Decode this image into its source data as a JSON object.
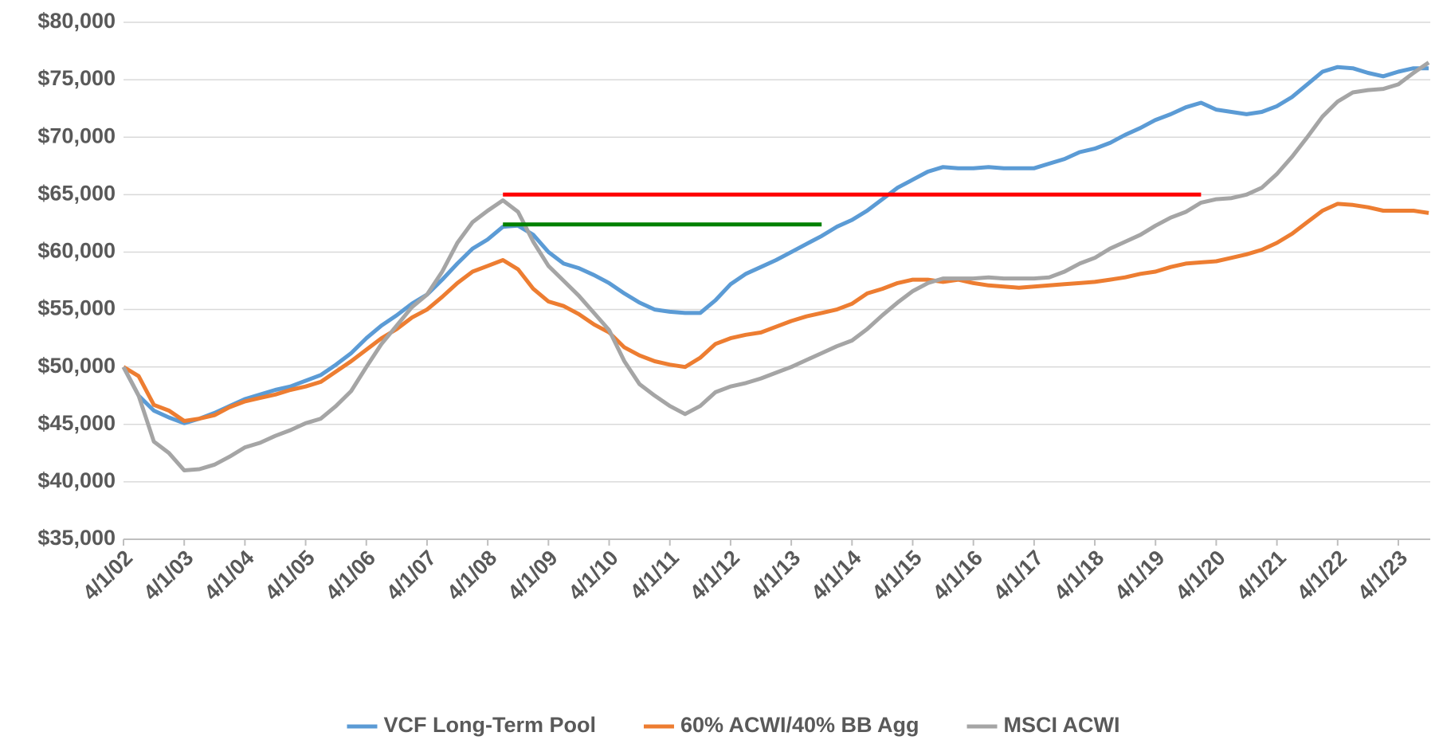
{
  "chart_data": {
    "type": "line",
    "categories": [
      "4/1/02",
      null,
      null,
      null,
      "4/1/03",
      null,
      null,
      null,
      "4/1/04",
      null,
      null,
      null,
      "4/1/05",
      null,
      null,
      null,
      "4/1/06",
      null,
      null,
      null,
      "4/1/07",
      null,
      null,
      null,
      "4/1/08",
      null,
      null,
      null,
      "4/1/09",
      null,
      null,
      null,
      "4/1/10",
      null,
      null,
      null,
      "4/1/11",
      null,
      null,
      null,
      "4/1/12",
      null,
      null,
      null,
      "4/1/13",
      null,
      null,
      null,
      "4/1/14",
      null,
      null,
      null,
      "4/1/15",
      null,
      null,
      null,
      "4/1/16",
      null,
      null,
      null,
      "4/1/17",
      null,
      null,
      null,
      "4/1/18",
      null,
      null,
      null,
      "4/1/19",
      null,
      null,
      null,
      "4/1/20",
      null,
      null,
      null,
      "4/1/21",
      null,
      null,
      null,
      "4/1/22",
      null,
      null,
      null,
      "4/1/23",
      null,
      null
    ],
    "series": [
      {
        "name": "VCF Long-Term Pool",
        "color": "#5b9bd5",
        "values": [
          50000,
          47500,
          46200,
          45600,
          45100,
          45500,
          46000,
          46600,
          47200,
          47600,
          48000,
          48300,
          48800,
          49300,
          50200,
          51200,
          52500,
          53600,
          54500,
          55500,
          56300,
          57600,
          59000,
          60300,
          61100,
          62200,
          62300,
          61500,
          60000,
          59000,
          58600,
          58000,
          57300,
          56400,
          55600,
          55000,
          54800,
          54700,
          54700,
          55800,
          57200,
          58100,
          58700,
          59300,
          60000,
          60700,
          61400,
          62200,
          62800,
          63600,
          64600,
          65600,
          66300,
          67000,
          67400,
          67300,
          67300,
          67400,
          67300,
          67300,
          67300,
          67700,
          68100,
          68700,
          69000,
          69500,
          70200,
          70800,
          71500,
          72000,
          72600,
          73000,
          72400,
          72200,
          72000,
          72200,
          72700,
          73500,
          74600,
          75700,
          76100,
          76000,
          75600,
          75300,
          75700,
          76000,
          76000
        ]
      },
      {
        "name": "60% ACWI/40% BB Agg",
        "color": "#ed7d31",
        "values": [
          50000,
          49200,
          46700,
          46200,
          45300,
          45500,
          45800,
          46500,
          47000,
          47300,
          47600,
          48000,
          48300,
          48700,
          49600,
          50500,
          51500,
          52500,
          53300,
          54300,
          55000,
          56100,
          57300,
          58300,
          58800,
          59300,
          58500,
          56800,
          55700,
          55300,
          54600,
          53700,
          53000,
          51700,
          51000,
          50500,
          50200,
          50000,
          50800,
          52000,
          52500,
          52800,
          53000,
          53500,
          54000,
          54400,
          54700,
          55000,
          55500,
          56400,
          56800,
          57300,
          57600,
          57600,
          57400,
          57600,
          57300,
          57100,
          57000,
          56900,
          57000,
          57100,
          57200,
          57300,
          57400,
          57600,
          57800,
          58100,
          58300,
          58700,
          59000,
          59100,
          59200,
          59500,
          59800,
          60200,
          60800,
          61600,
          62600,
          63600,
          64200,
          64100,
          63900,
          63600,
          63600,
          63600,
          63400
        ]
      },
      {
        "name": "MSCI ACWI",
        "color": "#a5a5a5",
        "values": [
          50000,
          47500,
          43500,
          42500,
          41000,
          41100,
          41500,
          42200,
          43000,
          43400,
          44000,
          44500,
          45100,
          45500,
          46600,
          47900,
          50000,
          52000,
          53600,
          55200,
          56300,
          58300,
          60800,
          62600,
          63600,
          64500,
          63500,
          60900,
          58800,
          57500,
          56200,
          54700,
          53200,
          50500,
          48500,
          47500,
          46600,
          45900,
          46600,
          47800,
          48300,
          48600,
          49000,
          49500,
          50000,
          50600,
          51200,
          51800,
          52300,
          53300,
          54500,
          55600,
          56600,
          57300,
          57700,
          57700,
          57700,
          57800,
          57700,
          57700,
          57700,
          57800,
          58300,
          59000,
          59500,
          60300,
          60900,
          61500,
          62300,
          63000,
          63500,
          64300,
          64600,
          64700,
          65000,
          65600,
          66800,
          68300,
          70000,
          71800,
          73100,
          73900,
          74100,
          74200,
          74600,
          75600,
          76500
        ]
      },
      {
        "color": "#ff0000",
        "values": [
          null,
          null,
          null,
          null,
          null,
          null,
          null,
          null,
          null,
          null,
          null,
          null,
          null,
          null,
          null,
          null,
          null,
          null,
          null,
          null,
          null,
          null,
          null,
          null,
          null,
          65000,
          65000,
          65000,
          65000,
          65000,
          65000,
          65000,
          65000,
          65000,
          65000,
          65000,
          65000,
          65000,
          65000,
          65000,
          65000,
          65000,
          65000,
          65000,
          65000,
          65000,
          65000,
          65000,
          65000,
          65000,
          65000,
          65000,
          65000,
          65000,
          65000,
          65000,
          65000,
          65000,
          65000,
          65000,
          65000,
          65000,
          65000,
          65000,
          65000,
          65000,
          65000,
          65000,
          65000,
          65000,
          65000,
          65000,
          null,
          null,
          null,
          null,
          null,
          null,
          null,
          null,
          null,
          null,
          null,
          null,
          null,
          null,
          null
        ]
      },
      {
        "color": "#008000",
        "values": [
          null,
          null,
          null,
          null,
          null,
          null,
          null,
          null,
          null,
          null,
          null,
          null,
          null,
          null,
          null,
          null,
          null,
          null,
          null,
          null,
          null,
          null,
          null,
          null,
          null,
          62400,
          62400,
          62400,
          62400,
          62400,
          62400,
          62400,
          62400,
          62400,
          62400,
          62400,
          62400,
          62400,
          62400,
          62400,
          62400,
          62400,
          62400,
          62400,
          62400,
          62400,
          62400,
          null,
          null,
          null,
          null,
          null,
          null,
          null,
          null,
          null,
          null,
          null,
          null,
          null,
          null,
          null,
          null,
          null,
          null,
          null,
          null,
          null,
          null,
          null,
          null,
          null,
          null,
          null,
          null,
          null,
          null,
          null,
          null,
          null,
          null,
          null,
          null,
          null,
          null,
          null,
          null
        ]
      }
    ],
    "ylim": [
      35000,
      80000
    ],
    "yticks": [
      {
        "value": 35000,
        "label": "$35,000"
      },
      {
        "value": 40000,
        "label": "$40,000"
      },
      {
        "value": 45000,
        "label": "$45,000"
      },
      {
        "value": 50000,
        "label": "$50,000"
      },
      {
        "value": 55000,
        "label": "$55,000"
      },
      {
        "value": 60000,
        "label": "$60,000"
      },
      {
        "value": 65000,
        "label": "$65,000"
      },
      {
        "value": 70000,
        "label": "$70,000"
      },
      {
        "value": 75000,
        "label": "$75,000"
      },
      {
        "value": 80000,
        "label": "$80,000"
      }
    ],
    "grid": true,
    "legend": "bottom"
  }
}
